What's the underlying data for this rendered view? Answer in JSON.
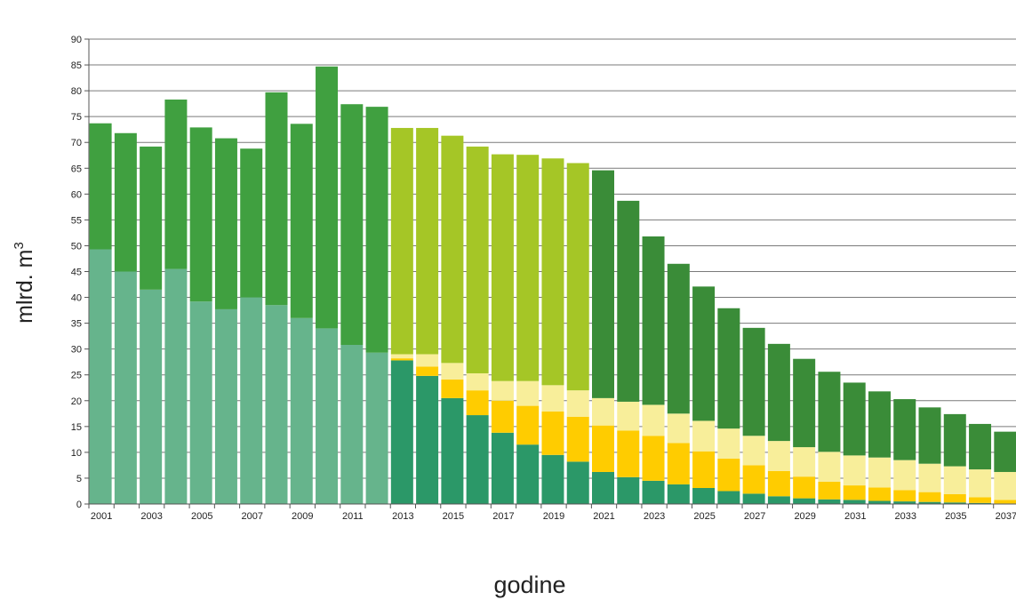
{
  "chart_data": {
    "type": "bar",
    "stacked": true,
    "xlabel": "godine",
    "ylabel": "mlrd. m",
    "ylabel_sup": "3",
    "ylim": [
      0,
      90
    ],
    "y_ticks": [
      0,
      5,
      10,
      15,
      20,
      25,
      30,
      35,
      40,
      45,
      50,
      55,
      60,
      65,
      70,
      75,
      80,
      85,
      90
    ],
    "x_tick_labels": [
      "2001",
      "2003",
      "2005",
      "2007",
      "2009",
      "2011",
      "2013",
      "2015",
      "2017",
      "2019",
      "2021",
      "2023",
      "2025",
      "2027",
      "2029",
      "2031",
      "2033",
      "2035",
      "2037"
    ],
    "grid": true,
    "legend": "none",
    "categories": [
      2001,
      2002,
      2003,
      2004,
      2005,
      2006,
      2007,
      2008,
      2009,
      2010,
      2011,
      2012,
      2013,
      2014,
      2015,
      2016,
      2017,
      2018,
      2019,
      2020,
      2021,
      2022,
      2023,
      2024,
      2025,
      2026,
      2027,
      2028,
      2029,
      2030,
      2031,
      2032,
      2033,
      2034,
      2035,
      2036,
      2037
    ],
    "series": [
      {
        "color": "#66b48c",
        "values": [
          49.3,
          45,
          41.5,
          45.5,
          39.2,
          37.7,
          40,
          38.5,
          36,
          34,
          30.8,
          29.3,
          0,
          0,
          0,
          0,
          0,
          0,
          0,
          0,
          0,
          0,
          0,
          0,
          0,
          0,
          0,
          0,
          0,
          0,
          0,
          0,
          0,
          0,
          0,
          0,
          0
        ]
      },
      {
        "color": "#40a040",
        "values": [
          24.4,
          26.8,
          27.7,
          32.8,
          33.7,
          33.1,
          28.8,
          41.2,
          37.6,
          50.7,
          46.6,
          47.6,
          0,
          0,
          0,
          0,
          0,
          0,
          0,
          0,
          0,
          0,
          0,
          0,
          0,
          0,
          0,
          0,
          0,
          0,
          0,
          0,
          0,
          0,
          0,
          0,
          0
        ]
      },
      {
        "color": "#2b9868",
        "values": [
          0,
          0,
          0,
          0,
          0,
          0,
          0,
          0,
          0,
          0,
          0,
          0,
          27.8,
          24.8,
          20.5,
          17.2,
          13.8,
          11.5,
          9.5,
          8.2,
          6.2,
          5.2,
          4.5,
          3.8,
          3.1,
          2.5,
          2,
          1.5,
          1.1,
          0.9,
          0.8,
          0.6,
          0.5,
          0.4,
          0.3,
          0.2,
          0.1
        ]
      },
      {
        "color": "#ffcc00",
        "values": [
          0,
          0,
          0,
          0,
          0,
          0,
          0,
          0,
          0,
          0,
          0,
          0,
          0.4,
          1.8,
          3.6,
          4.8,
          6.2,
          7.5,
          8.4,
          8.7,
          9,
          9,
          8.7,
          8,
          7.1,
          6.3,
          5.5,
          4.9,
          4.2,
          3.4,
          2.8,
          2.6,
          2.2,
          1.9,
          1.6,
          1.1,
          0.7
        ]
      },
      {
        "color": "#f8ee9a",
        "values": [
          0,
          0,
          0,
          0,
          0,
          0,
          0,
          0,
          0,
          0,
          0,
          0,
          0.8,
          2.4,
          3.2,
          3.3,
          3.8,
          4.8,
          5.1,
          5.1,
          5.3,
          5.6,
          6,
          5.7,
          5.9,
          5.8,
          5.7,
          5.8,
          5.7,
          5.8,
          5.8,
          5.8,
          5.8,
          5.5,
          5.4,
          5.4,
          5.4
        ]
      },
      {
        "color": "#a5c626",
        "values": [
          0,
          0,
          0,
          0,
          0,
          0,
          0,
          0,
          0,
          0,
          0,
          0,
          43.8,
          43.8,
          44,
          43.9,
          43.9,
          43.8,
          43.9,
          44,
          0,
          0,
          0,
          0,
          0,
          0,
          0,
          0,
          0,
          0,
          0,
          0,
          0,
          0,
          0,
          0,
          0
        ]
      },
      {
        "color": "#3a8c38",
        "values": [
          0,
          0,
          0,
          0,
          0,
          0,
          0,
          0,
          0,
          0,
          0,
          0,
          0,
          0,
          0,
          0,
          0,
          0,
          0,
          0,
          44.1,
          38.9,
          32.6,
          29,
          26,
          23.3,
          20.9,
          18.8,
          17.1,
          15.5,
          14.1,
          12.8,
          11.8,
          10.9,
          10.1,
          8.8,
          7.8
        ]
      }
    ]
  }
}
